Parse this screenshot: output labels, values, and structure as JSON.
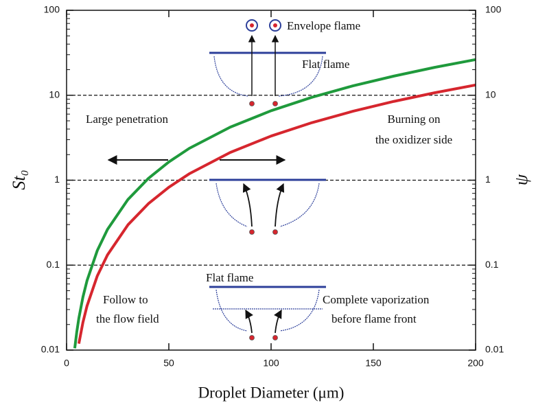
{
  "chart_data": {
    "type": "line",
    "xlabel": "Droplet Diameter (μm)",
    "ylabel": "St₀",
    "y2label": "ψ",
    "x": [
      4,
      5,
      6,
      8,
      10,
      15,
      20,
      30,
      40,
      50,
      60,
      80,
      100,
      120,
      140,
      160,
      180,
      200
    ],
    "series": [
      {
        "color": "#1f9a3c",
        "values": [
          0.0105,
          0.0164,
          0.0237,
          0.0421,
          0.0657,
          0.148,
          0.263,
          0.592,
          1.05,
          1.64,
          2.37,
          4.21,
          6.57,
          9.47,
          12.9,
          16.8,
          21.3,
          26.3
        ]
      },
      {
        "color": "#d6262e",
        "values": [
          null,
          null,
          0.0119,
          0.0212,
          0.0331,
          0.0744,
          0.132,
          0.298,
          0.529,
          0.826,
          1.19,
          2.12,
          3.31,
          4.76,
          6.48,
          8.46,
          10.7,
          13.2
        ]
      }
    ],
    "xlim": [
      0,
      200
    ],
    "xticks": [
      0,
      50,
      100,
      150,
      200
    ],
    "ylim": [
      0.01,
      100
    ],
    "yticks": [
      0.01,
      0.1,
      1,
      10,
      100
    ],
    "y2lim": [
      0.01,
      100
    ],
    "y2ticks": [
      0.01,
      0.1,
      1,
      10,
      100
    ],
    "log_y": true,
    "grid": true,
    "annotations": [
      "Envelope flame",
      "Flat flame",
      "Large penetration",
      "Burning on",
      "the oxidizer side",
      "Flat flame",
      "Follow to",
      "the flow field",
      "Complete vaporization",
      "before flame front"
    ]
  }
}
